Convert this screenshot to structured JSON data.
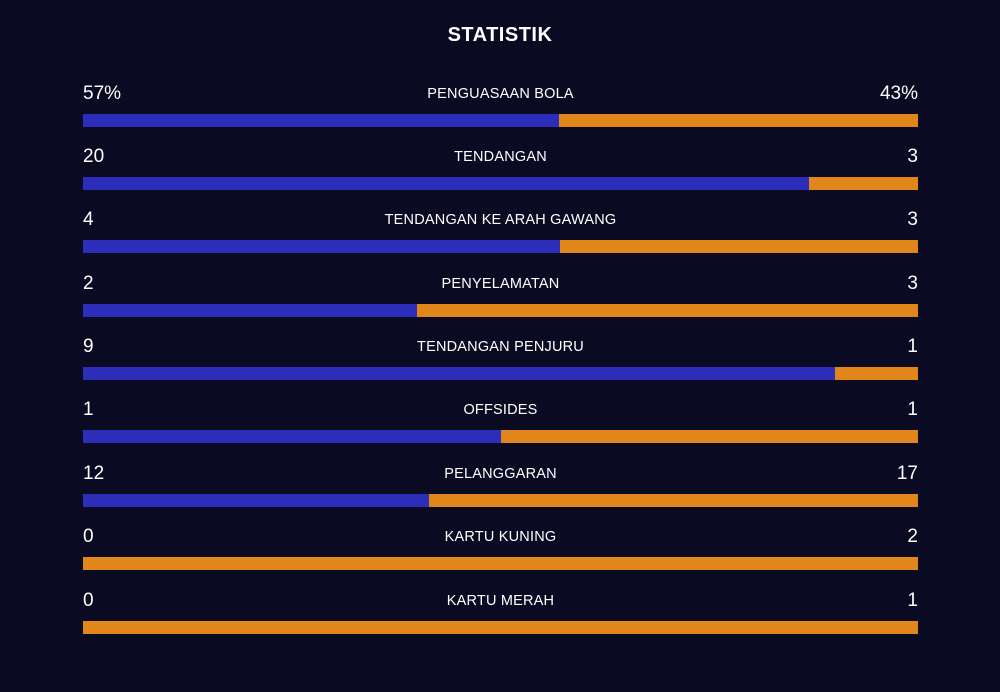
{
  "title": "STATISTIK",
  "colors": {
    "background": "#0a0a23",
    "home": "#2c2db8",
    "away": "#e0861a",
    "text": "#ffffff"
  },
  "stats": [
    {
      "label": "PENGUASAAN BOLA",
      "left": "57%",
      "right": "43%",
      "home_share": 0.57
    },
    {
      "label": "TENDANGAN",
      "left": "20",
      "right": "3",
      "home_share": 0.87
    },
    {
      "label": "TENDANGAN KE ARAH GAWANG",
      "left": "4",
      "right": "3",
      "home_share": 0.571
    },
    {
      "label": "PENYELAMATAN",
      "left": "2",
      "right": "3",
      "home_share": 0.4
    },
    {
      "label": "TENDANGAN PENJURU",
      "left": "9",
      "right": "1",
      "home_share": 0.9
    },
    {
      "label": "OFFSIDES",
      "left": "1",
      "right": "1",
      "home_share": 0.5
    },
    {
      "label": "PELANGGARAN",
      "left": "12",
      "right": "17",
      "home_share": 0.414
    },
    {
      "label": "KARTU KUNING",
      "left": "0",
      "right": "2",
      "home_share": 0
    },
    {
      "label": "KARTU MERAH",
      "left": "0",
      "right": "1",
      "home_share": 0
    }
  ]
}
